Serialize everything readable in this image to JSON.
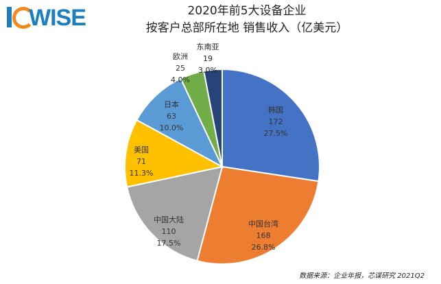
{
  "logo": {
    "text": "WISE"
  },
  "title": {
    "line1": "2020年前5大设备企业",
    "line2": "按客户总部所在地 销售收入（亿美元）"
  },
  "source": "数据来源：企业年报，芯谋研究 2021Q2",
  "chart_data": {
    "type": "pie",
    "title": "2020年前5大设备企业 按客户总部所在地 销售收入（亿美元）",
    "slices": [
      {
        "label": "韩国",
        "value": 172,
        "percent": "27.5%",
        "color": "#4472c4"
      },
      {
        "label": "中国台湾",
        "value": 168,
        "percent": "26.8%",
        "color": "#ed7d31"
      },
      {
        "label": "中国大陆",
        "value": 110,
        "percent": "17.5%",
        "color": "#a5a5a5"
      },
      {
        "label": "美国",
        "value": 71,
        "percent": "11.3%",
        "color": "#ffc000"
      },
      {
        "label": "日本",
        "value": 63,
        "percent": "10.0%",
        "color": "#5b9bd5"
      },
      {
        "label": "欧洲",
        "value": 25,
        "percent": "4.0%",
        "color": "#70ad47"
      },
      {
        "label": "东南亚",
        "value": 19,
        "percent": "3.0%",
        "color": "#264478"
      }
    ]
  }
}
